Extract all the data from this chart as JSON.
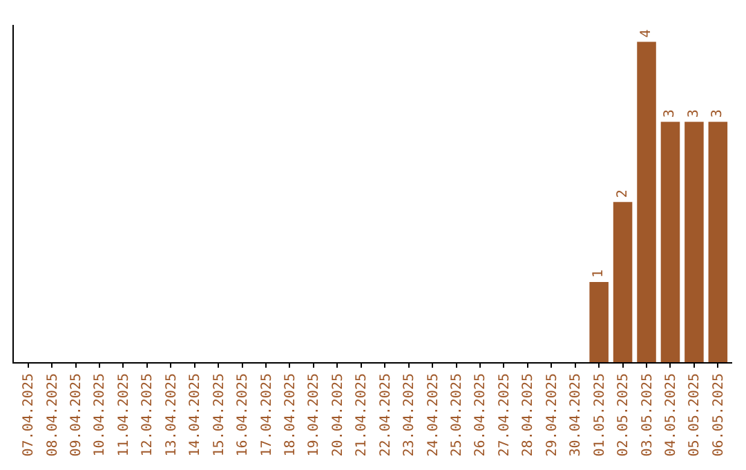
{
  "chart_data": {
    "type": "bar",
    "categories": [
      "07.04.2025",
      "08.04.2025",
      "09.04.2025",
      "10.04.2025",
      "11.04.2025",
      "12.04.2025",
      "13.04.2025",
      "14.04.2025",
      "15.04.2025",
      "16.04.2025",
      "17.04.2025",
      "18.04.2025",
      "19.04.2025",
      "20.04.2025",
      "21.04.2025",
      "22.04.2025",
      "23.04.2025",
      "24.04.2025",
      "25.04.2025",
      "26.04.2025",
      "27.04.2025",
      "28.04.2025",
      "29.04.2025",
      "30.04.2025",
      "01.05.2025",
      "02.05.2025",
      "03.05.2025",
      "04.05.2025",
      "05.05.2025",
      "06.05.2025"
    ],
    "values": [
      null,
      null,
      null,
      null,
      null,
      null,
      null,
      null,
      null,
      null,
      null,
      null,
      null,
      null,
      null,
      null,
      null,
      null,
      null,
      null,
      null,
      null,
      null,
      null,
      1,
      2,
      4,
      3,
      3,
      3
    ],
    "value_labels": [
      null,
      null,
      null,
      null,
      null,
      null,
      null,
      null,
      null,
      null,
      null,
      null,
      null,
      null,
      null,
      null,
      null,
      null,
      null,
      null,
      null,
      null,
      null,
      null,
      "1",
      "2",
      "4",
      "3",
      "3",
      "3"
    ],
    "color": "#a0592a",
    "tick_labels": "x",
    "legend": false
  }
}
